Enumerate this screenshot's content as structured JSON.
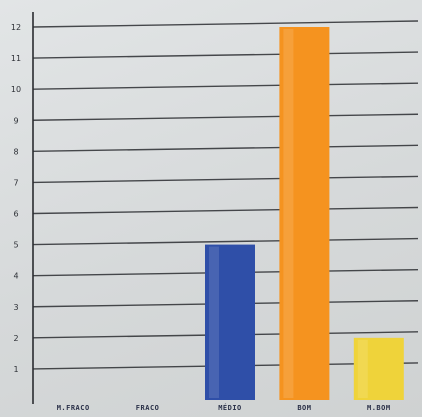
{
  "chart_data": {
    "type": "bar",
    "title": "",
    "xlabel": "",
    "ylabel": "",
    "categories": [
      "M.FRACO",
      "FRACO",
      "MÉDIO",
      "BOM",
      "M.BOM"
    ],
    "values": [
      0,
      0,
      5,
      12,
      2
    ],
    "tick_labels": [
      "1",
      "2",
      "3",
      "4",
      "5",
      "6",
      "7",
      "8",
      "9",
      "10",
      "11",
      "12"
    ],
    "ylim": [
      0,
      12
    ],
    "grid": true,
    "bar_colors": [
      "#3a4fa0",
      "#3a4fa0",
      "#2f4fa8",
      "#f5931f",
      "#efd33a"
    ]
  }
}
